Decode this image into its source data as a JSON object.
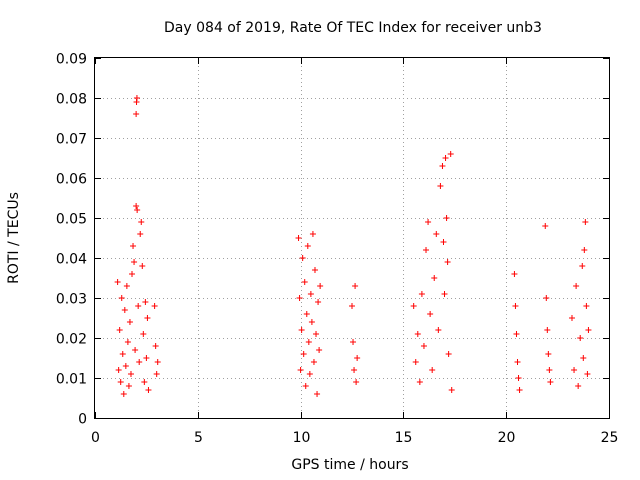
{
  "chart_data": {
    "type": "scatter",
    "title": "Day 084 of 2019, Rate Of TEC Index for receiver unb3",
    "xlabel": "GPS time / hours",
    "ylabel": "ROTI / TECUs",
    "xlim": [
      0,
      25
    ],
    "ylim": [
      0,
      0.09
    ],
    "x_ticks": [
      "0",
      "5",
      "10",
      "15",
      "20",
      "25"
    ],
    "y_ticks": [
      "0",
      "0.01",
      "0.02",
      "0.03",
      "0.04",
      "0.05",
      "0.06",
      "0.07",
      "0.08",
      "0.09"
    ],
    "grid": true,
    "marker": "+",
    "color": "#ff0000",
    "series": [
      {
        "points": [
          [
            1.1,
            0.034
          ],
          [
            1.15,
            0.012
          ],
          [
            1.2,
            0.022
          ],
          [
            1.25,
            0.009
          ],
          [
            1.3,
            0.03
          ],
          [
            1.35,
            0.016
          ],
          [
            1.4,
            0.006
          ],
          [
            1.45,
            0.027
          ],
          [
            1.5,
            0.013
          ],
          [
            1.55,
            0.033
          ],
          [
            1.6,
            0.019
          ],
          [
            1.65,
            0.008
          ],
          [
            1.7,
            0.024
          ],
          [
            1.75,
            0.011
          ],
          [
            1.8,
            0.036
          ],
          [
            1.85,
            0.043
          ],
          [
            1.9,
            0.039
          ],
          [
            1.95,
            0.017
          ],
          [
            2.0,
            0.076
          ],
          [
            2.02,
            0.079
          ],
          [
            2.04,
            0.08
          ],
          [
            2.0,
            0.053
          ],
          [
            2.05,
            0.052
          ],
          [
            2.1,
            0.028
          ],
          [
            2.15,
            0.014
          ],
          [
            2.2,
            0.046
          ],
          [
            2.25,
            0.049
          ],
          [
            2.3,
            0.038
          ],
          [
            2.35,
            0.021
          ],
          [
            2.4,
            0.009
          ],
          [
            2.45,
            0.029
          ],
          [
            2.5,
            0.015
          ],
          [
            2.55,
            0.025
          ],
          [
            2.6,
            0.007
          ],
          [
            2.9,
            0.028
          ],
          [
            2.95,
            0.018
          ],
          [
            3.0,
            0.011
          ],
          [
            3.05,
            0.014
          ],
          [
            9.9,
            0.045
          ],
          [
            9.95,
            0.03
          ],
          [
            10.0,
            0.012
          ],
          [
            10.05,
            0.022
          ],
          [
            10.1,
            0.04
          ],
          [
            10.15,
            0.016
          ],
          [
            10.2,
            0.034
          ],
          [
            10.25,
            0.008
          ],
          [
            10.3,
            0.026
          ],
          [
            10.35,
            0.043
          ],
          [
            10.4,
            0.019
          ],
          [
            10.45,
            0.011
          ],
          [
            10.5,
            0.031
          ],
          [
            10.55,
            0.024
          ],
          [
            10.6,
            0.046
          ],
          [
            10.65,
            0.014
          ],
          [
            10.7,
            0.037
          ],
          [
            10.75,
            0.021
          ],
          [
            10.8,
            0.006
          ],
          [
            10.85,
            0.029
          ],
          [
            10.9,
            0.017
          ],
          [
            10.95,
            0.033
          ],
          [
            12.5,
            0.028
          ],
          [
            12.55,
            0.019
          ],
          [
            12.6,
            0.012
          ],
          [
            12.65,
            0.033
          ],
          [
            12.7,
            0.009
          ],
          [
            12.75,
            0.015
          ],
          [
            15.5,
            0.028
          ],
          [
            15.6,
            0.014
          ],
          [
            15.7,
            0.021
          ],
          [
            15.8,
            0.009
          ],
          [
            15.9,
            0.031
          ],
          [
            16.0,
            0.018
          ],
          [
            16.1,
            0.042
          ],
          [
            16.2,
            0.049
          ],
          [
            16.3,
            0.026
          ],
          [
            16.4,
            0.012
          ],
          [
            16.5,
            0.035
          ],
          [
            16.6,
            0.046
          ],
          [
            16.7,
            0.022
          ],
          [
            16.8,
            0.058
          ],
          [
            16.9,
            0.063
          ],
          [
            16.95,
            0.044
          ],
          [
            17.0,
            0.031
          ],
          [
            17.05,
            0.065
          ],
          [
            17.1,
            0.05
          ],
          [
            17.15,
            0.039
          ],
          [
            17.2,
            0.016
          ],
          [
            17.3,
            0.066
          ],
          [
            17.35,
            0.007
          ],
          [
            20.4,
            0.036
          ],
          [
            20.45,
            0.028
          ],
          [
            20.5,
            0.021
          ],
          [
            20.55,
            0.014
          ],
          [
            20.6,
            0.01
          ],
          [
            20.65,
            0.007
          ],
          [
            21.9,
            0.048
          ],
          [
            21.95,
            0.03
          ],
          [
            22.0,
            0.022
          ],
          [
            22.05,
            0.016
          ],
          [
            22.1,
            0.012
          ],
          [
            22.15,
            0.009
          ],
          [
            23.2,
            0.025
          ],
          [
            23.3,
            0.012
          ],
          [
            23.4,
            0.033
          ],
          [
            23.5,
            0.008
          ],
          [
            23.6,
            0.02
          ],
          [
            23.7,
            0.038
          ],
          [
            23.75,
            0.015
          ],
          [
            23.8,
            0.042
          ],
          [
            23.85,
            0.049
          ],
          [
            23.9,
            0.028
          ],
          [
            23.95,
            0.011
          ],
          [
            24.0,
            0.022
          ]
        ]
      }
    ]
  }
}
